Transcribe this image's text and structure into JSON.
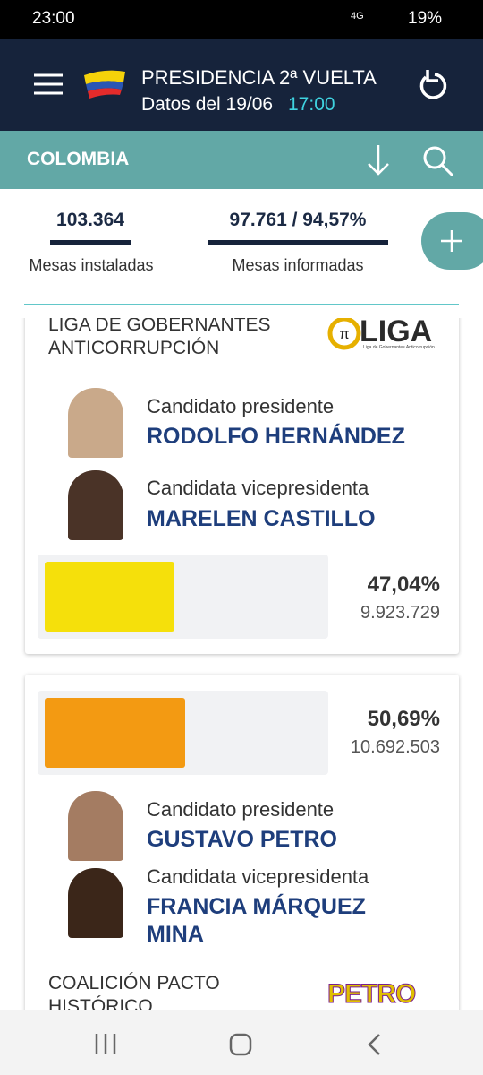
{
  "status": {
    "time": "23:00",
    "network": "4G",
    "battery": "19%"
  },
  "header": {
    "title": "PRESIDENCIA 2ª VUELTA",
    "date": "Datos del 19/06",
    "time": "17:00"
  },
  "toolbar": {
    "region": "COLOMBIA"
  },
  "stats": [
    {
      "value": "103.364",
      "label": "Mesas instaladas"
    },
    {
      "value": "97.761 / 94,57%",
      "label": "Mesas informadas"
    }
  ],
  "candidates": [
    {
      "party": "LIGA DE GOBERNANTES ANTICORRUPCIÓN",
      "logo": "LIGA",
      "logo_subtitle": "Liga de Gobernantes Anticorrupción",
      "president_role": "Candidato presidente",
      "president": "RODOLFO HERNÁNDEZ",
      "vice_role": "Candidata vicepresidenta",
      "vice": "MARELEN CASTILLO",
      "share": {
        "value": 47.04,
        "label": "47,04%"
      },
      "votes": "9.923.729",
      "color": "#f5e00b"
    },
    {
      "party": "COALICIÓN PACTO HISTÓRICO",
      "logo": "PETRO",
      "president_role": "Candidato presidente",
      "president": "GUSTAVO PETRO",
      "vice_role": "Candidata vicepresidenta",
      "vice": "FRANCIA MÁRQUEZ MINA",
      "share": {
        "value": 50.69,
        "label": "50,69%"
      },
      "votes": "10.692.503",
      "color": "#f39a12"
    }
  ]
}
